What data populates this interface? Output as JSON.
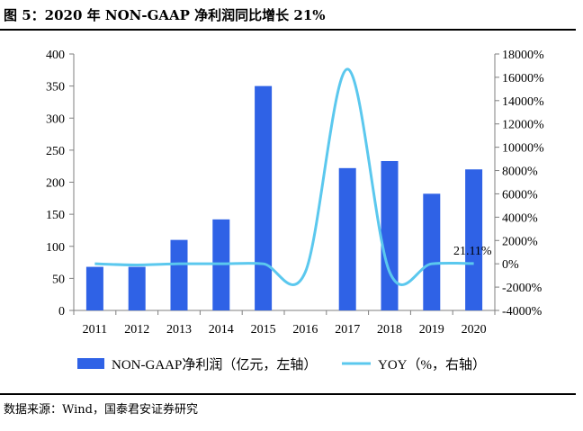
{
  "figure": {
    "title": "图 5：2020 年 NON-GAAP 净利润同比增长 21%",
    "source": "数据来源：Wind，国泰君安证券研究"
  },
  "colors": {
    "bar": "#2F62E6",
    "line": "#5BC8EE",
    "axis": "#7F7F7F"
  },
  "chart_data": {
    "type": "bar",
    "categories": [
      "2011",
      "2012",
      "2013",
      "2014",
      "2015",
      "2016",
      "2017",
      "2018",
      "2019",
      "2020"
    ],
    "series": [
      {
        "name": "NON-GAAP净利润（亿元，左轴）",
        "type": "bar",
        "axis": "left",
        "values": [
          68,
          68,
          110,
          142,
          350,
          0,
          222,
          233,
          182,
          220
        ]
      },
      {
        "name": "YOY（%，右轴）",
        "type": "line",
        "axis": "right",
        "values": [
          0,
          -100,
          0,
          0,
          0,
          -700,
          16700,
          -700,
          0,
          21.11
        ]
      }
    ],
    "left_axis": {
      "ylim": [
        0,
        400
      ],
      "ticks": [
        0,
        50,
        100,
        150,
        200,
        250,
        300,
        350,
        400
      ]
    },
    "right_axis": {
      "ylim": [
        -4000,
        18000
      ],
      "ticks": [
        -4000,
        -2000,
        0,
        2000,
        4000,
        6000,
        8000,
        10000,
        12000,
        14000,
        16000,
        18000
      ],
      "tick_labels": [
        "-4000%",
        "-2000%",
        "0%",
        "2000%",
        "4000%",
        "6000%",
        "8000%",
        "10000%",
        "12000%",
        "14000%",
        "16000%",
        "18000%"
      ]
    },
    "annotation": "21.11%",
    "legend": [
      "NON-GAAP净利润（亿元，左轴）",
      "YOY（%，右轴）"
    ],
    "legend_position": "bottom"
  }
}
